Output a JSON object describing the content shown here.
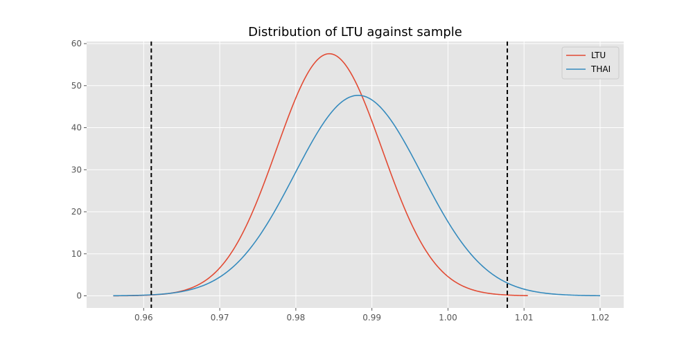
{
  "chart_data": {
    "type": "line",
    "title": "Distribution of LTU against sample",
    "xlabel": "",
    "ylabel": "",
    "xlim": [
      0.9525,
      1.0231
    ],
    "ylim": [
      -2.88,
      60.5
    ],
    "xticks": [
      0.96,
      0.97,
      0.98,
      0.99,
      1.0,
      1.01,
      1.02
    ],
    "xtick_labels": [
      "0.96",
      "0.97",
      "0.98",
      "0.99",
      "1.00",
      "1.01",
      "1.02"
    ],
    "yticks": [
      0,
      10,
      20,
      30,
      40,
      50,
      60
    ],
    "ytick_labels": [
      "0",
      "10",
      "20",
      "30",
      "40",
      "50",
      "60"
    ],
    "grid": true,
    "legend_position": "top-right",
    "series": [
      {
        "name": "LTU",
        "color": "#E24A33",
        "distribution": "normal",
        "mean": 0.9844,
        "std": 0.00693,
        "x_range": [
          0.956,
          1.0105
        ],
        "peak": 57.6
      },
      {
        "name": "THAI",
        "color": "#348ABD",
        "distribution": "normal",
        "mean": 0.9882,
        "std": 0.00836,
        "x_range": [
          0.956,
          1.02
        ],
        "peak": 47.7
      }
    ],
    "vlines": [
      {
        "x": 0.961,
        "color": "#000000",
        "style": "dashed"
      },
      {
        "x": 1.0078,
        "color": "#000000",
        "style": "dashed"
      }
    ]
  }
}
